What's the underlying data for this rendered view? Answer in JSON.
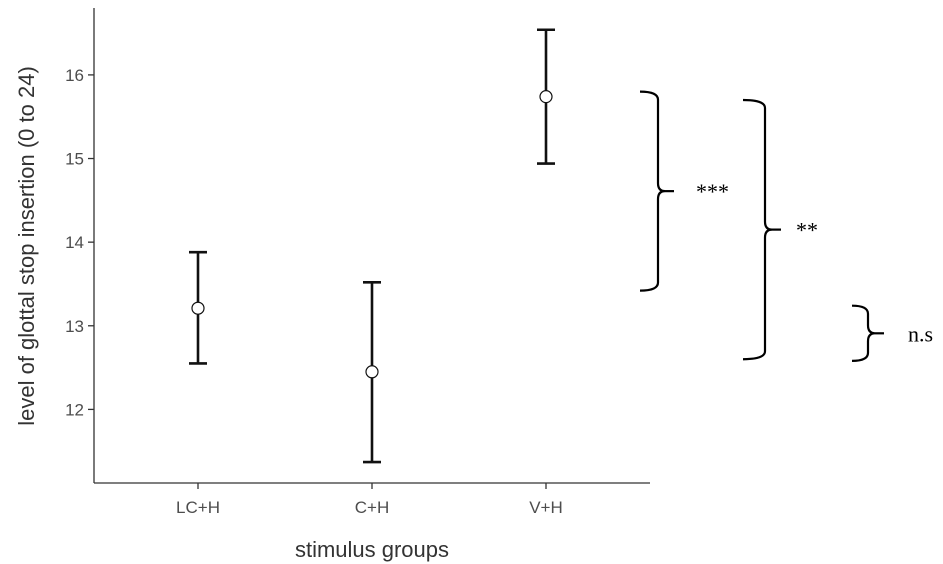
{
  "chart_data": {
    "type": "scatter",
    "xlabel": "stimulus groups",
    "ylabel": "level of glottal stop insertion (0 to 24)",
    "categories": [
      "LC+H",
      "C+H",
      "V+H"
    ],
    "means": [
      13.21,
      12.45,
      15.74
    ],
    "ci_lower": [
      12.55,
      11.37,
      14.94
    ],
    "ci_upper": [
      13.88,
      13.52,
      16.54
    ],
    "ylim": [
      11.12,
      16.8
    ],
    "yticks": [
      12,
      13,
      14,
      15,
      16
    ],
    "grid": false,
    "legend": "none",
    "comparisons": [
      {
        "label": "***",
        "from": 13.42,
        "to": 15.8
      },
      {
        "label": "**",
        "from": 12.6,
        "to": 15.7
      },
      {
        "label": "n.s",
        "from": 12.58,
        "to": 13.24
      }
    ]
  }
}
